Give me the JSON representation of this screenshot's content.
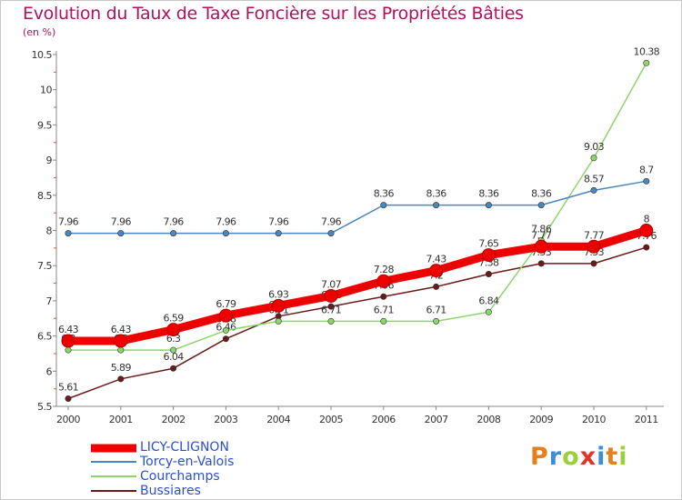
{
  "title": "Evolution du Taux de Taxe Foncière sur les Propriétés Bâties",
  "subtitle": "(en %)",
  "logo": {
    "p": "P",
    "r": "r",
    "o": "o",
    "x": "x",
    "i": "i",
    "t": "t",
    "i2": "i"
  },
  "chart_data": {
    "type": "line",
    "title": "Evolution du Taux de Taxe Foncière sur les Propriétés Bâties",
    "ylabel": "(en %)",
    "xlabel": "",
    "ylim": [
      5.5,
      10.5
    ],
    "yticks": [
      "5.5",
      "6",
      "6.5",
      "7",
      "7.5",
      "8",
      "8.5",
      "9",
      "9.5",
      "10",
      "10.5"
    ],
    "categories": [
      "2000",
      "2001",
      "2002",
      "2003",
      "2004",
      "2005",
      "2006",
      "2007",
      "2008",
      "2009",
      "2010",
      "2011"
    ],
    "series": [
      {
        "name": "Bussiares",
        "color": "#6b1a1a",
        "values": [
          5.61,
          5.89,
          6.04,
          6.46,
          6.78,
          6.92,
          7.06,
          7.2,
          7.38,
          7.53,
          7.53,
          7.76
        ],
        "labels": [
          "5.61",
          "5.89",
          "6.04",
          "6.46",
          "6.78",
          "6.92",
          "7.06",
          "7.2",
          "7.38",
          "7.53",
          "7.53",
          "7.76"
        ]
      },
      {
        "name": "Courchamps",
        "color": "#8ed66b",
        "values": [
          6.3,
          6.3,
          6.3,
          6.58,
          6.71,
          6.71,
          6.71,
          6.71,
          6.84,
          7.86,
          9.03,
          10.38
        ],
        "labels": [
          "6.3",
          "6.3",
          "6.3",
          "6.58",
          "6.71",
          "6.71",
          "6.71",
          "6.71",
          "6.84",
          "7.86",
          "9.03",
          "10.38"
        ]
      },
      {
        "name": "Torcy-en-Valois",
        "color": "#4a86c0",
        "values": [
          7.96,
          7.96,
          7.96,
          7.96,
          7.96,
          7.96,
          8.36,
          8.36,
          8.36,
          8.36,
          8.57,
          8.7
        ],
        "labels": [
          "7.96",
          "7.96",
          "7.96",
          "7.96",
          "7.96",
          "7.96",
          "8.36",
          "8.36",
          "8.36",
          "8.36",
          "8.57",
          "8.7"
        ]
      },
      {
        "name": "LICY-CLIGNON",
        "color": "#ee0000",
        "values": [
          6.43,
          6.43,
          6.59,
          6.79,
          6.93,
          7.07,
          7.28,
          7.43,
          7.65,
          7.77,
          7.77,
          8.0
        ],
        "labels": [
          "6.43",
          "6.43",
          "6.59",
          "6.79",
          "6.93",
          "7.07",
          "7.28",
          "7.43",
          "7.65",
          "7.77",
          "7.77",
          "8"
        ]
      }
    ],
    "legend": [
      "LICY-CLIGNON",
      "Torcy-en-Valois",
      "Courchamps",
      "Bussiares"
    ],
    "legend_position": "bottom-left"
  }
}
